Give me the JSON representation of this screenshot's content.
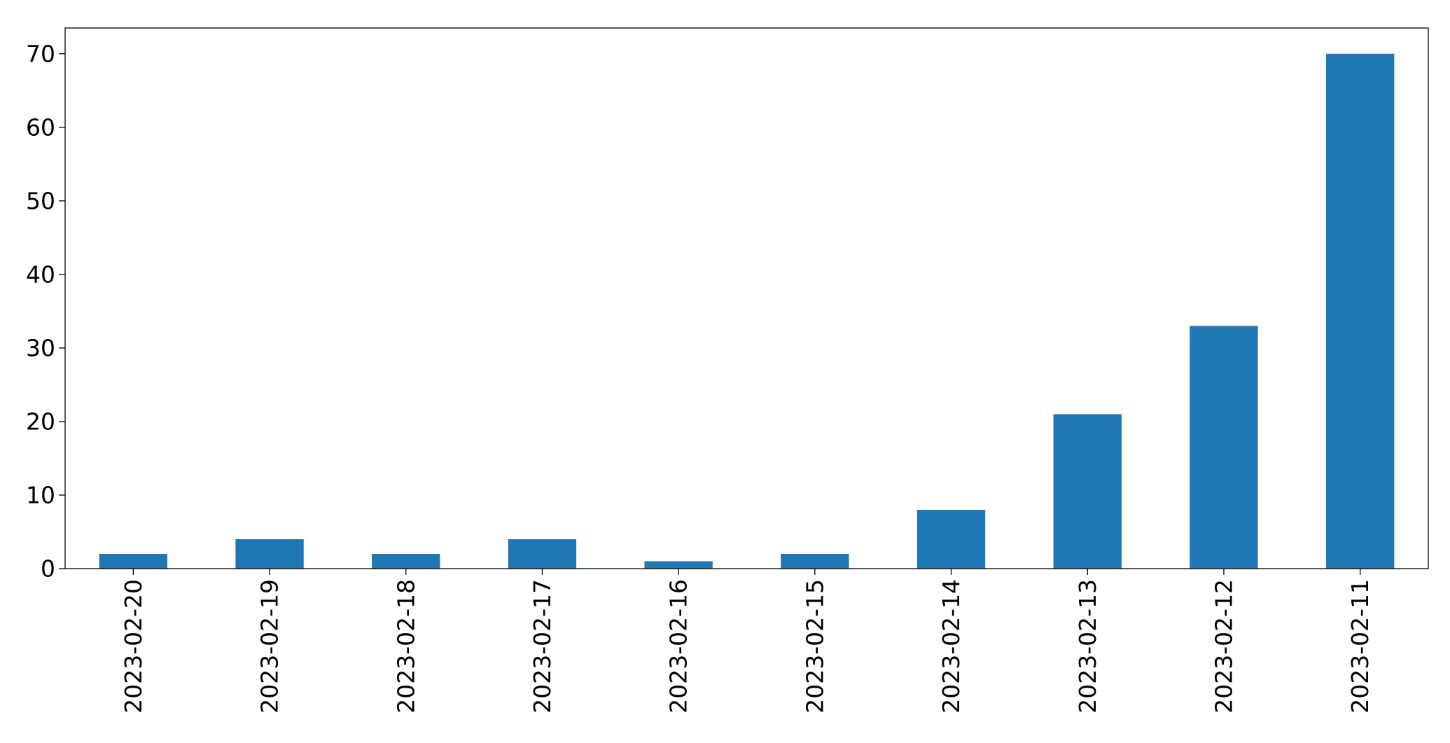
{
  "chart_data": {
    "type": "bar",
    "title": "",
    "xlabel": "",
    "ylabel": "",
    "categories": [
      "2023-02-20",
      "2023-02-19",
      "2023-02-18",
      "2023-02-17",
      "2023-02-16",
      "2023-02-15",
      "2023-02-14",
      "2023-02-13",
      "2023-02-12",
      "2023-02-11"
    ],
    "values": [
      2,
      4,
      2,
      4,
      1,
      2,
      8,
      21,
      33,
      70
    ],
    "ylim": [
      0,
      73.5
    ],
    "yticks": [
      "0",
      "10",
      "20",
      "30",
      "40",
      "50",
      "60",
      "70"
    ],
    "grid": false,
    "legend": "none",
    "bar_color": "#1f77b4"
  }
}
